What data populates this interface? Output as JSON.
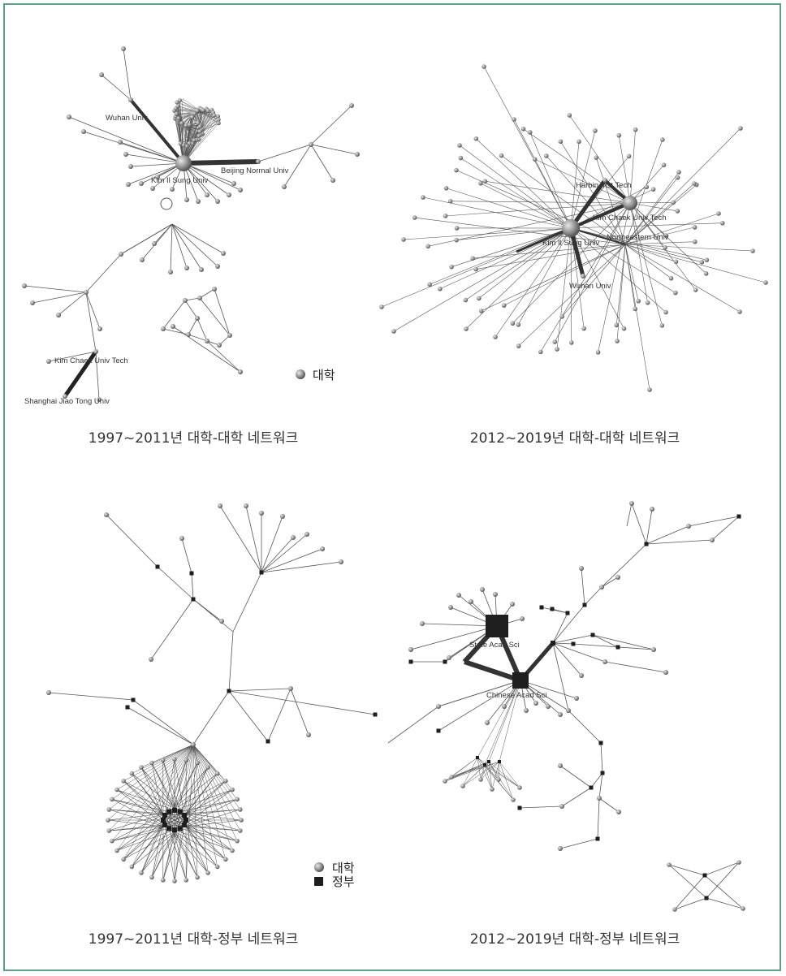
{
  "panels": [
    {
      "caption": "1997~2011년 대학-대학 네트워크",
      "labels": [
        "Wuhan Univ",
        "Kim Il Sung Univ",
        "Beijing Normal Univ",
        "Kim Chaek Univ Tech",
        "Shanghai Jiao Tong Univ"
      ]
    },
    {
      "caption": "2012~2019년 대학-대학 네트워크",
      "labels": [
        "Harbin Inst Tech",
        "Kim Chaek Univ Tech",
        "Kim Il Sung Univ",
        "Northeastern Univ",
        "Wuhan Univ"
      ]
    },
    {
      "caption": "1997~2011년 대학-정부 네트워크",
      "labels": []
    },
    {
      "caption": "2012~2019년 대학-정부 네트워크",
      "labels": [
        "State Acad Sci",
        "Chinese Acad Sci"
      ]
    }
  ],
  "legend": {
    "university": "대학",
    "government": "정부"
  },
  "colors": {
    "node_university": "#8c8c8c",
    "node_government": "#1e1e1e",
    "edge": "#555555",
    "frame": "#5f9e8c"
  }
}
